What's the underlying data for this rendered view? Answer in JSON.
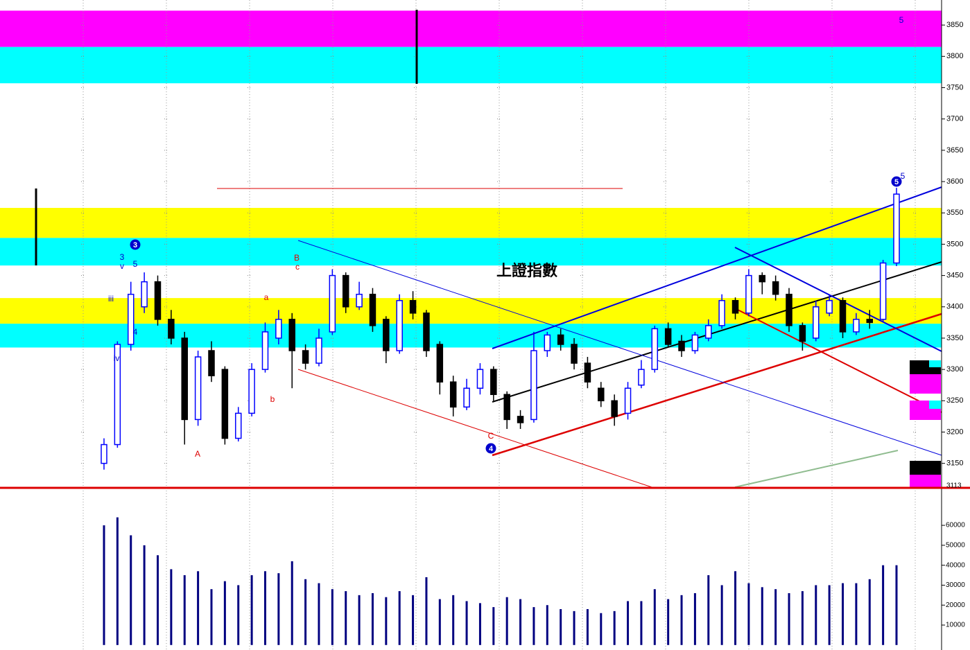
{
  "chart_data": [
    {
      "type": "candlestick",
      "title": "上證指數",
      "up_color": "#0000ff",
      "down_color": "#000000",
      "open": [
        3150,
        3180,
        3340,
        3400,
        3440,
        3380,
        3350,
        3220,
        3330,
        3300,
        3190,
        3230,
        3300,
        3350,
        3380,
        3330,
        3310,
        3360,
        3450,
        3400,
        3420,
        3380,
        3330,
        3410,
        3390,
        3340,
        3280,
        3240,
        3270,
        3300,
        3260,
        3225,
        3220,
        3330,
        3355,
        3340,
        3310,
        3270,
        3250,
        3230,
        3275,
        3300,
        3365,
        3345,
        3330,
        3350,
        3370,
        3410,
        3390,
        3450,
        3440,
        3420,
        3370,
        3350,
        3390,
        3410,
        3360,
        3380,
        3380,
        3470
      ],
      "high": [
        3190,
        3345,
        3440,
        3455,
        3450,
        3395,
        3360,
        3330,
        3345,
        3305,
        3240,
        3310,
        3375,
        3395,
        3390,
        3340,
        3365,
        3460,
        3455,
        3440,
        3430,
        3385,
        3420,
        3425,
        3395,
        3345,
        3290,
        3285,
        3310,
        3305,
        3265,
        3235,
        3360,
        3360,
        3365,
        3350,
        3320,
        3280,
        3260,
        3280,
        3315,
        3370,
        3375,
        3355,
        3360,
        3380,
        3420,
        3415,
        3460,
        3455,
        3450,
        3430,
        3375,
        3410,
        3420,
        3415,
        3390,
        3395,
        3475,
        3590
      ],
      "low": [
        3140,
        3175,
        3330,
        3390,
        3370,
        3340,
        3180,
        3210,
        3280,
        3180,
        3185,
        3225,
        3295,
        3340,
        3270,
        3300,
        3305,
        3355,
        3390,
        3395,
        3360,
        3310,
        3325,
        3380,
        3320,
        3260,
        3225,
        3235,
        3260,
        3250,
        3205,
        3205,
        3215,
        3320,
        3330,
        3300,
        3270,
        3240,
        3210,
        3220,
        3270,
        3295,
        3335,
        3320,
        3325,
        3345,
        3365,
        3380,
        3385,
        3420,
        3410,
        3360,
        3330,
        3345,
        3385,
        3350,
        3355,
        3365,
        3375,
        3465
      ],
      "close": [
        3180,
        3340,
        3420,
        3440,
        3380,
        3350,
        3220,
        3320,
        3290,
        3190,
        3230,
        3300,
        3360,
        3380,
        3330,
        3310,
        3350,
        3450,
        3400,
        3420,
        3370,
        3330,
        3410,
        3390,
        3330,
        3280,
        3240,
        3270,
        3300,
        3260,
        3220,
        3215,
        3330,
        3355,
        3340,
        3310,
        3280,
        3250,
        3225,
        3270,
        3300,
        3365,
        3340,
        3330,
        3355,
        3370,
        3410,
        3390,
        3450,
        3440,
        3420,
        3370,
        3345,
        3400,
        3410,
        3360,
        3380,
        3375,
        3470,
        3580
      ],
      "ylim": [
        3112,
        3890
      ],
      "yticks": [
        3150,
        3200,
        3250,
        3300,
        3350,
        3400,
        3450,
        3500,
        3550,
        3600,
        3650,
        3700,
        3750,
        3800,
        3850
      ],
      "bottom_label": "3113",
      "zones": [
        {
          "range": [
            3815,
            3873
          ],
          "color": "#ff00ff"
        },
        {
          "range": [
            3757,
            3815
          ],
          "color": "#00ffff"
        },
        {
          "range": [
            3510,
            3558
          ],
          "color": "#ffff00"
        },
        {
          "range": [
            3466,
            3510
          ],
          "color": "#00ffff"
        },
        {
          "range": [
            3373,
            3414
          ],
          "color": "#ffff00"
        },
        {
          "range": [
            3335,
            3373
          ],
          "color": "#00ffff"
        }
      ],
      "annotations": [
        {
          "text": "3",
          "color": "#0000cc",
          "circled": true
        },
        {
          "text": "4",
          "color": "#0000cc",
          "circled": true
        },
        {
          "text": "5",
          "color": "#0000cc",
          "circled": true
        },
        {
          "text": "A",
          "color": "#dd0000",
          "circled": false
        },
        {
          "text": "a",
          "color": "#dd0000",
          "circled": false
        },
        {
          "text": "b",
          "color": "#dd0000",
          "circled": false
        },
        {
          "text": "B",
          "color": "#dd0000",
          "circled": false
        },
        {
          "text": "c",
          "color": "#dd0000",
          "circled": false
        },
        {
          "text": "C",
          "color": "#dd0000",
          "circled": false
        },
        {
          "text": "3",
          "color": "#0000cc",
          "circled": false
        },
        {
          "text": "v",
          "color": "#0000cc",
          "circled": false
        },
        {
          "text": "5",
          "color": "#0000cc",
          "circled": false
        },
        {
          "text": "iii",
          "color": "#0000cc",
          "circled": false
        },
        {
          "text": "4",
          "color": "#0000cc",
          "circled": false
        },
        {
          "text": "iv",
          "color": "#0000cc",
          "circled": false
        },
        {
          "text": "5",
          "color": "#0000cc",
          "circled": false
        },
        {
          "text": "5",
          "color": "#0000cc",
          "circled": false
        }
      ]
    },
    {
      "type": "bar",
      "color": "#000080",
      "line_color": "#dd0000",
      "values": [
        60000,
        64000,
        55000,
        50000,
        45000,
        38000,
        35000,
        37000,
        28000,
        32000,
        30000,
        35000,
        37000,
        36000,
        42000,
        33000,
        31000,
        28000,
        27000,
        25000,
        26000,
        24000,
        27000,
        25000,
        34000,
        23000,
        25000,
        22000,
        21000,
        19000,
        24000,
        23000,
        19000,
        20000,
        18000,
        17000,
        18000,
        16000,
        17000,
        22000,
        22000,
        28000,
        23000,
        25000,
        26000,
        35000,
        30000,
        37000,
        31000,
        29000,
        28000,
        26000,
        27000,
        30000,
        30000,
        31000,
        31000,
        33000,
        40000,
        40000
      ],
      "ylim": [
        -2500,
        77400
      ],
      "yticks": [
        10000,
        20000,
        30000,
        40000,
        50000,
        60000
      ]
    }
  ]
}
